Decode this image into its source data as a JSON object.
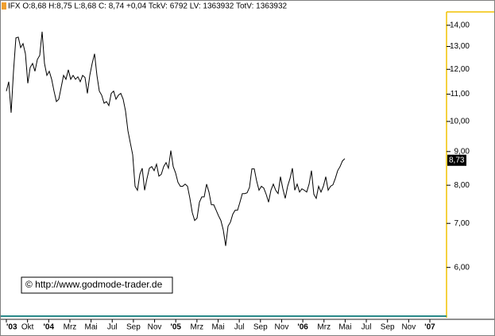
{
  "chart_data": {
    "type": "line",
    "header": "IFX O:8,68 H:8,75 L:8,68 C: 8,74 +0,04 TckV: 6792 LV: 1363932 TotV: 1363932",
    "watermark": "© http://www.godmode-trader.de",
    "xtick_labels": [
      "'03",
      "Okt",
      "'04",
      "Mrz",
      "Mai",
      "Jul",
      "Sep",
      "Nov",
      "'05",
      "Mrz",
      "Mai",
      "Jul",
      "Sep",
      "Nov",
      "'06",
      "Mrz",
      "Mai",
      "Jul",
      "Sep",
      "Nov",
      "'07"
    ],
    "log_scale": true,
    "ylim": [
      5.06,
      14.67
    ],
    "yticks": [
      {
        "value": 6,
        "label": "6,00"
      },
      {
        "value": 7,
        "label": "7,00"
      },
      {
        "value": 8,
        "label": "8,00"
      },
      {
        "value": 9,
        "label": "9,00"
      },
      {
        "value": 10,
        "label": "10,00"
      },
      {
        "value": 11,
        "label": "11,00"
      },
      {
        "value": 12,
        "label": "12,00"
      },
      {
        "value": 13,
        "label": "13,00"
      },
      {
        "value": 14,
        "label": "14,00"
      }
    ],
    "last_price": {
      "value": 8.73,
      "label": "8,73"
    },
    "series": [
      {
        "color": "#000000",
        "values": [
          11.12,
          11.49,
          10.31,
          11.92,
          13.39,
          13.43,
          12.95,
          13.13,
          12.67,
          11.43,
          12.08,
          12.25,
          11.92,
          12.42,
          12.6,
          13.69,
          12.25,
          11.75,
          11.92,
          11.59,
          11.12,
          10.72,
          10.81,
          11.27,
          11.75,
          11.59,
          11.98,
          11.59,
          11.75,
          11.59,
          11.69,
          11.49,
          11.75,
          11.66,
          11.03,
          11.75,
          12.25,
          12.67,
          11.75,
          11.12,
          10.96,
          10.66,
          10.72,
          10.57,
          11.03,
          11.12,
          10.81,
          10.96,
          11.03,
          10.81,
          10.37,
          9.68,
          9.28,
          8.9,
          7.97,
          7.86,
          8.31,
          8.49,
          7.86,
          8.19,
          8.49,
          8.54,
          8.42,
          8.61,
          8.26,
          8.31,
          8.54,
          8.66,
          8.49,
          9.03,
          8.54,
          8.35,
          8.08,
          7.97,
          7.97,
          8.03,
          7.97,
          7.64,
          7.27,
          7.07,
          7.13,
          7.54,
          7.68,
          7.68,
          8.03,
          7.81,
          7.47,
          7.47,
          7.33,
          7.19,
          7.07,
          6.84,
          6.47,
          6.93,
          7.03,
          7.23,
          7.33,
          7.33,
          7.54,
          7.77,
          7.77,
          7.79,
          7.94,
          8.47,
          8.47,
          8.12,
          7.86,
          7.97,
          7.92,
          7.75,
          7.54,
          7.86,
          8.03,
          7.86,
          7.77,
          8.24,
          7.9,
          7.64,
          7.97,
          8.19,
          8.49,
          7.86,
          8.03,
          7.81,
          7.9,
          7.86,
          7.81,
          8.03,
          8.42,
          7.75,
          7.64,
          7.97,
          7.81,
          7.97,
          8.24,
          7.86,
          7.97,
          8.01,
          8.19,
          8.42,
          8.54,
          8.71,
          8.78
        ]
      }
    ]
  }
}
